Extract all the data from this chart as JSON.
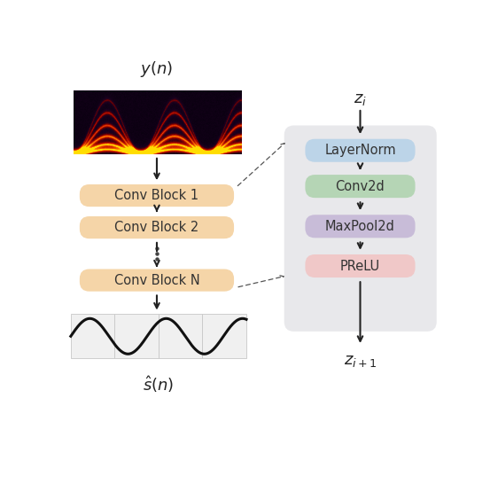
{
  "fig_width": 5.62,
  "fig_height": 5.64,
  "fig_dpi": 100,
  "bg_color": "#ffffff",
  "conv_block_color": "#f5d5a8",
  "right_panel_bg": "#e8e8e8",
  "right_block_colors": [
    "#bcd4e8",
    "#b5d5b5",
    "#c8bcd8",
    "#f0c8c8"
  ],
  "left_blocks": [
    "Conv Block 1",
    "Conv Block 2",
    "Conv Block N"
  ],
  "right_blocks": [
    "LayerNorm",
    "Conv2d",
    "MaxPool2d",
    "PReLU"
  ]
}
